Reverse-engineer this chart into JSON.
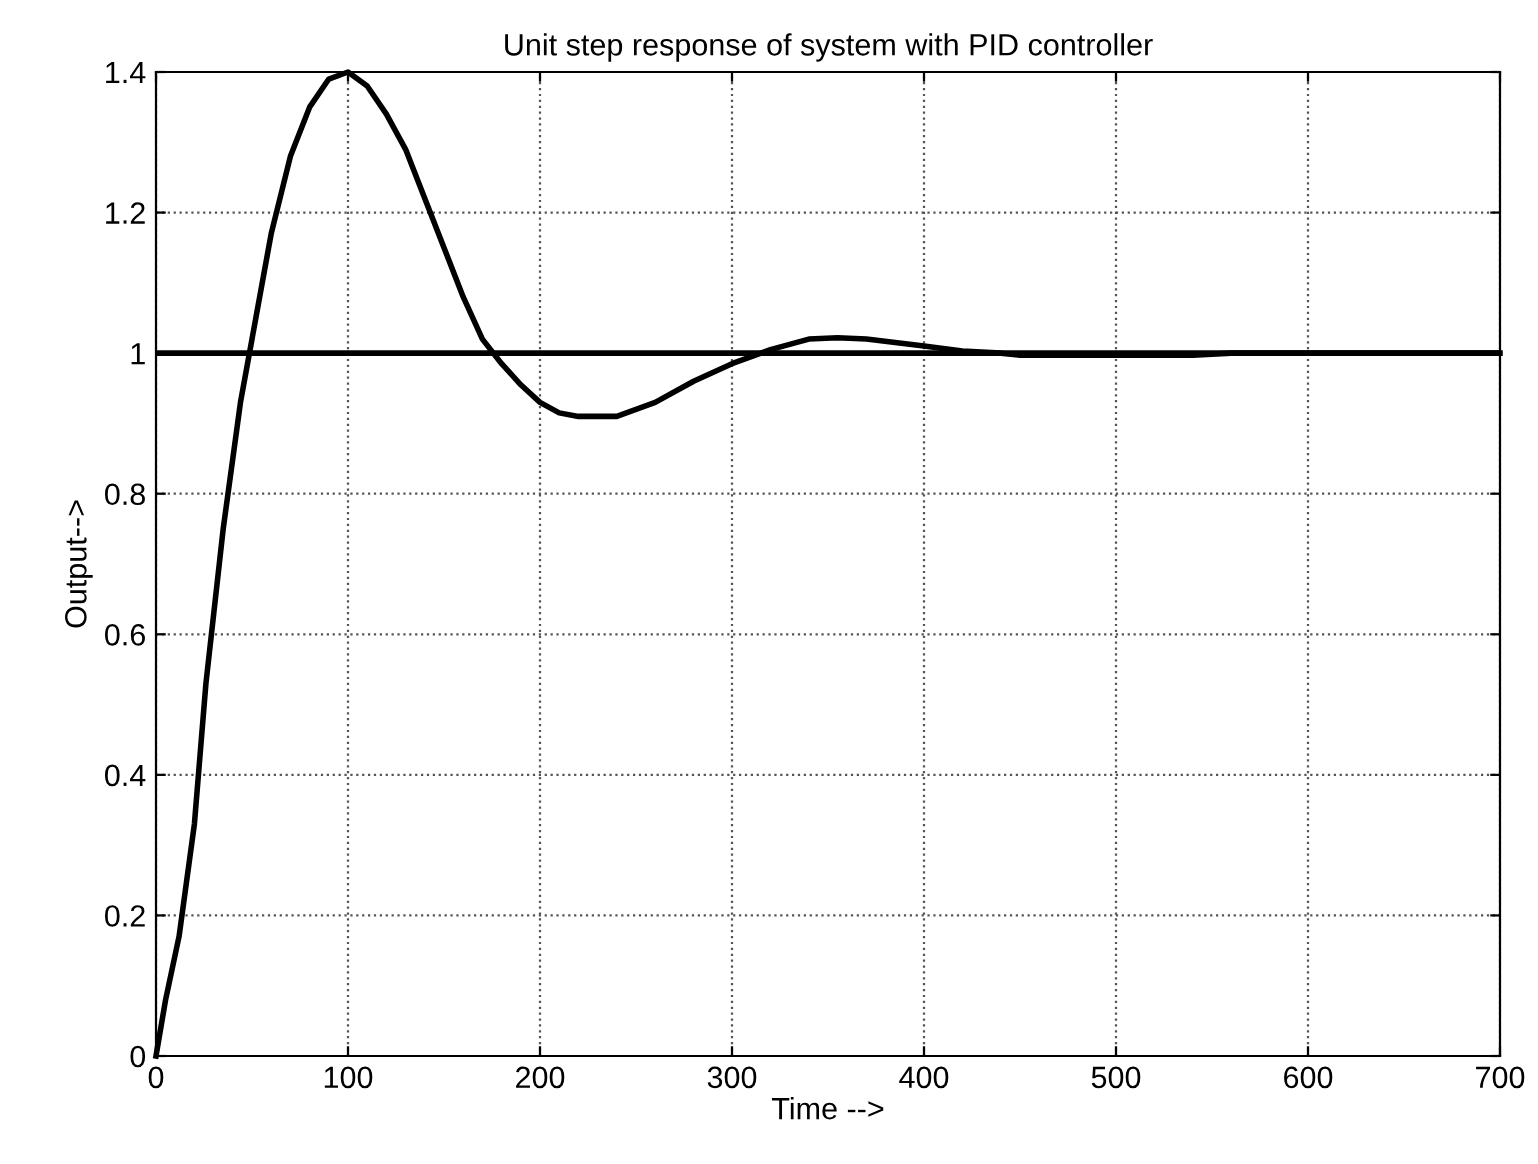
{
  "chart_data": {
    "type": "line",
    "title": "Unit step response of system with PID controller",
    "xlabel": "Time -->",
    "ylabel": "Output-->",
    "series": [
      {
        "color": "#000000",
        "x": [
          0,
          5,
          12,
          20,
          26,
          35,
          44,
          52,
          60,
          70,
          80,
          90,
          100,
          110,
          120,
          130,
          140,
          150,
          160,
          170,
          180,
          190,
          200,
          210,
          220,
          230,
          240,
          250,
          260,
          280,
          300,
          320,
          340,
          355,
          370,
          385,
          400,
          420,
          440,
          450,
          500,
          540,
          560,
          600,
          700
        ],
        "values": [
          0,
          0.08,
          0.17,
          0.33,
          0.53,
          0.75,
          0.93,
          1.05,
          1.17,
          1.28,
          1.35,
          1.39,
          1.4,
          1.38,
          1.34,
          1.29,
          1.22,
          1.15,
          1.08,
          1.02,
          0.985,
          0.955,
          0.93,
          0.915,
          0.91,
          0.91,
          0.91,
          0.92,
          0.93,
          0.96,
          0.985,
          1.005,
          1.02,
          1.022,
          1.02,
          1.015,
          1.01,
          1.003,
          1.0,
          0.997,
          0.997,
          0.997,
          1.0,
          1.0,
          1.0
        ]
      }
    ],
    "xlim": [
      0,
      700
    ],
    "xticks": [
      0,
      100,
      200,
      300,
      400,
      500,
      600,
      700
    ],
    "ylim": [
      0,
      1.4
    ],
    "yticks": [
      0,
      0.2,
      0.4,
      0.6,
      0.8,
      1,
      1.2,
      1.4
    ],
    "ref_lines": [
      {
        "axis": "y",
        "value": 1,
        "color": "#000000",
        "line_style": "solid"
      }
    ],
    "grid": true,
    "line_style": "solid",
    "marker": "none",
    "legend": false
  }
}
